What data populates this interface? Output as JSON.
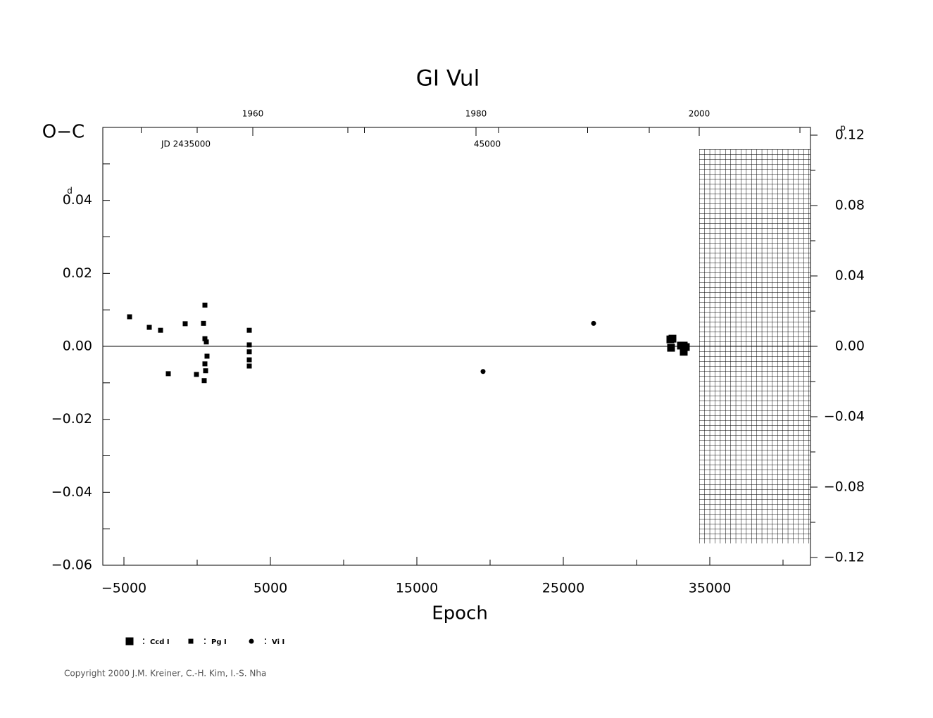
{
  "chart_data": {
    "type": "scatter",
    "title": "GI Vul",
    "x_label": "Epoch",
    "y_label": "O−C",
    "y_unit": "d",
    "y2_unit": "p",
    "copyright": "Copyright 2000 J.M. Kreiner, C.-H. Kim, I.-S. Nha",
    "xlim": [
      -6442,
      41875
    ],
    "xticks": [
      {
        "value": -5000,
        "label": "−5000"
      },
      5000,
      15000,
      25000,
      35000
    ],
    "xminor": [
      0,
      10000,
      20000,
      30000,
      40000
    ],
    "ylim": [
      -0.06,
      0.06
    ],
    "yticks": [
      {
        "value": -0.06,
        "label": "−0.06"
      },
      {
        "value": -0.04,
        "label": "−0.04"
      },
      {
        "value": -0.02,
        "label": "−0.02"
      },
      {
        "value": 0,
        "label": "0.00"
      },
      {
        "value": 0.02,
        "label": "0.02"
      },
      {
        "value": 0.04,
        "label": "0.04"
      }
    ],
    "yminor": [
      -0.05,
      -0.03,
      -0.01,
      0.01,
      0.03,
      0.05,
      0.06
    ],
    "y2lim": [
      -0.1244,
      0.1244
    ],
    "y2ticks": [
      {
        "value": -0.12,
        "label": "−0.12"
      },
      {
        "value": -0.08,
        "label": "−0.08"
      },
      {
        "value": -0.04,
        "label": "−0.04"
      },
      {
        "value": 0,
        "label": "0.00"
      },
      {
        "value": 0.04,
        "label": "0.04"
      },
      {
        "value": 0.08,
        "label": "0.08"
      },
      {
        "value": 0.12,
        "label": "0.12"
      }
    ],
    "y2minor": [
      -0.1,
      -0.06,
      -0.02,
      0.02,
      0.06,
      0.1
    ],
    "year_lim": [
      1946.56,
      2009.97
    ],
    "year_ticks": [
      1960,
      1980,
      2000
    ],
    "year_minor": [
      1950,
      1970,
      1990
    ],
    "jd_lim": [
      31869,
      55350
    ],
    "jd_ticks": [
      {
        "value": 35000,
        "label": "JD 2435000"
      },
      45000
    ],
    "jd_minor": [
      40000,
      50000,
      55000
    ],
    "series": [
      {
        "name": "Ccd I",
        "marker": "square-large",
        "color": "#000000",
        "x": [
          32308,
          32452,
          32356,
          33029,
          33221,
          33221,
          33365
        ],
        "values": [
          0.0019,
          0.0021,
          -0.0004,
          0.0002,
          0.0002,
          -0.0015,
          -0.0002
        ]
      },
      {
        "name": "Pg I",
        "marker": "square",
        "color": "#000000",
        "x": [
          -4615,
          -3269,
          -2500,
          -1971,
          -817,
          -48,
          433,
          529,
          529,
          625,
          673,
          529,
          577,
          481,
          3558,
          3558,
          3558,
          3558,
          3558
        ],
        "values": [
          0.0081,
          0.0052,
          0.0044,
          -0.0075,
          0.0062,
          -0.0077,
          0.0063,
          0.0113,
          0.0021,
          0.0012,
          -0.0027,
          -0.0048,
          -0.0067,
          -0.0094,
          0.0044,
          0.0004,
          -0.0015,
          -0.0037,
          -0.0054
        ]
      },
      {
        "name": "Vi I",
        "marker": "circle",
        "color": "#000000",
        "x": [
          19519,
          27067
        ],
        "values": [
          -0.0069,
          0.0063
        ]
      }
    ]
  }
}
